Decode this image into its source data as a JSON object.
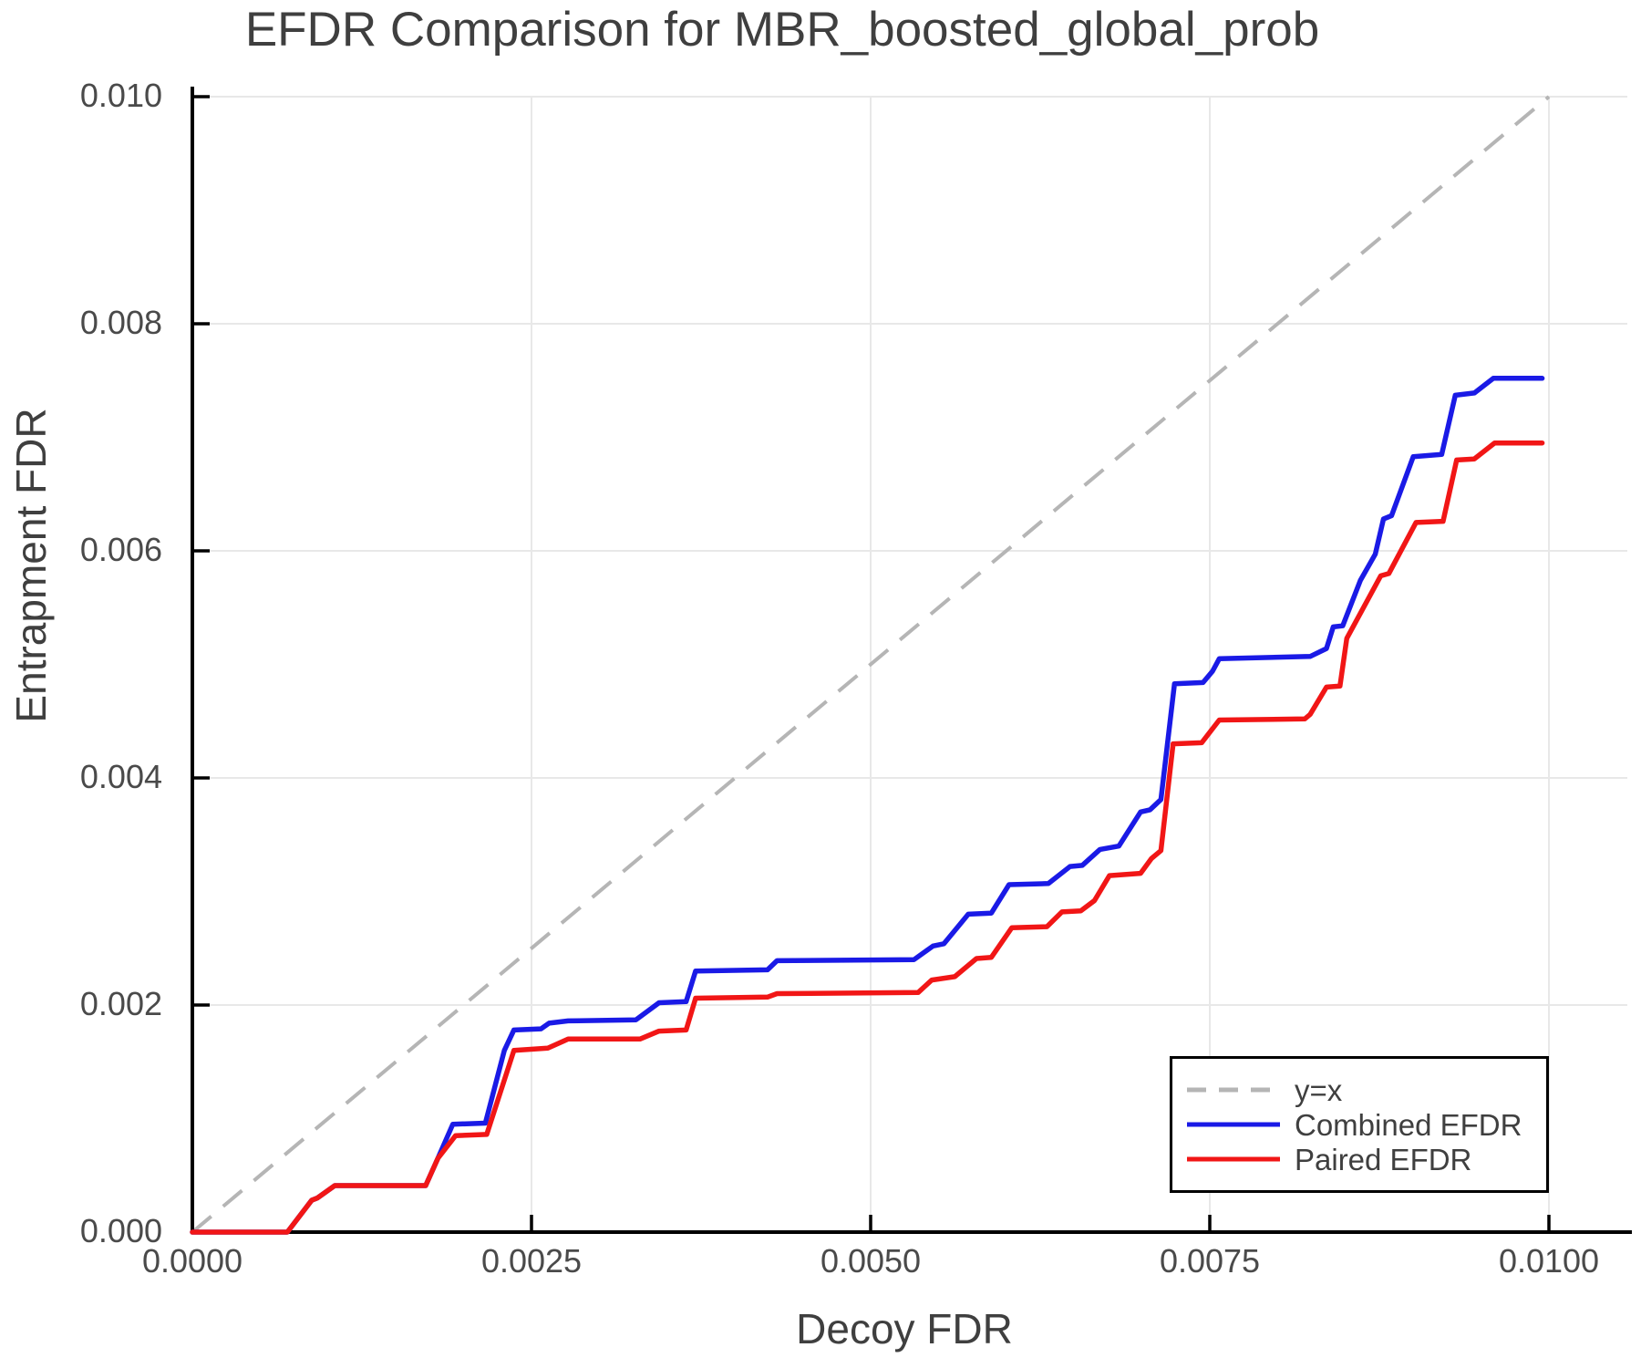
{
  "title": "EFDR Comparison for MBR_boosted_global_prob",
  "axes": {
    "x": {
      "label": "Decoy FDR",
      "ticks": [
        "0.0000",
        "0.0025",
        "0.0050",
        "0.0075",
        "0.0100"
      ],
      "tick_values": [
        0,
        0.0025,
        0.005,
        0.0075,
        0.01
      ]
    },
    "y": {
      "label": "Entrapment FDR",
      "ticks": [
        "0.000",
        "0.002",
        "0.004",
        "0.006",
        "0.008",
        "0.010"
      ],
      "tick_values": [
        0,
        0.002,
        0.004,
        0.006,
        0.008,
        0.01
      ]
    }
  },
  "legend": {
    "items": [
      {
        "label": "y=x",
        "color": "#b5b5b5",
        "style": "dashed"
      },
      {
        "label": "Combined EFDR",
        "color": "#1a1ae6",
        "style": "solid"
      },
      {
        "label": "Paired EFDR",
        "color": "#f11616",
        "style": "solid"
      }
    ]
  },
  "colors": {
    "grid": "#e8e8e8",
    "spine": "#000000",
    "title_text": "#3f3f3f",
    "tick_text": "#4a4a4a",
    "background": "#ffffff"
  },
  "chart_data": {
    "type": "line",
    "title": "EFDR Comparison for MBR_boosted_global_prob",
    "xlabel": "Decoy FDR",
    "ylabel": "Entrapment FDR",
    "xlim": [
      0,
      0.0105
    ],
    "ylim": [
      0,
      0.0101
    ],
    "grid": true,
    "legend_position": "lower right",
    "series": [
      {
        "name": "y=x",
        "color": "#b5b5b5",
        "dash": true,
        "points": [
          [
            0,
            0
          ],
          [
            0.01,
            0.01
          ]
        ]
      },
      {
        "name": "Combined EFDR",
        "color": "#1a1ae6",
        "dash": false,
        "points": [
          [
            0.0,
            0.0
          ],
          [
            0.0007,
            0.0
          ],
          [
            0.00088,
            0.00028
          ],
          [
            0.00092,
            0.0003
          ],
          [
            0.00105,
            0.00041
          ],
          [
            0.00172,
            0.00041
          ],
          [
            0.00181,
            0.00065
          ],
          [
            0.00192,
            0.00095
          ],
          [
            0.00216,
            0.00096
          ],
          [
            0.0023,
            0.0016
          ],
          [
            0.00237,
            0.00178
          ],
          [
            0.00257,
            0.00179
          ],
          [
            0.00263,
            0.00184
          ],
          [
            0.00277,
            0.00186
          ],
          [
            0.00327,
            0.00187
          ],
          [
            0.00344,
            0.00202
          ],
          [
            0.00364,
            0.00203
          ],
          [
            0.00371,
            0.0023
          ],
          [
            0.00424,
            0.00231
          ],
          [
            0.00431,
            0.00239
          ],
          [
            0.00532,
            0.0024
          ],
          [
            0.00546,
            0.00252
          ],
          [
            0.00554,
            0.00254
          ],
          [
            0.00572,
            0.0028
          ],
          [
            0.00589,
            0.00281
          ],
          [
            0.00602,
            0.00306
          ],
          [
            0.00631,
            0.00307
          ],
          [
            0.00647,
            0.00322
          ],
          [
            0.00656,
            0.00323
          ],
          [
            0.00669,
            0.00337
          ],
          [
            0.00683,
            0.0034
          ],
          [
            0.00699,
            0.0037
          ],
          [
            0.00706,
            0.00372
          ],
          [
            0.00714,
            0.00381
          ],
          [
            0.00724,
            0.00483
          ],
          [
            0.00745,
            0.00484
          ],
          [
            0.00752,
            0.00494
          ],
          [
            0.00757,
            0.00505
          ],
          [
            0.00824,
            0.00507
          ],
          [
            0.00836,
            0.00514
          ],
          [
            0.00841,
            0.00533
          ],
          [
            0.00848,
            0.00534
          ],
          [
            0.00861,
            0.00574
          ],
          [
            0.00872,
            0.00597
          ],
          [
            0.00878,
            0.00628
          ],
          [
            0.00884,
            0.00631
          ],
          [
            0.009,
            0.00683
          ],
          [
            0.00921,
            0.00685
          ],
          [
            0.00931,
            0.00737
          ],
          [
            0.00945,
            0.00739
          ],
          [
            0.00959,
            0.00752
          ],
          [
            0.00995,
            0.00752
          ]
        ]
      },
      {
        "name": "Paired EFDR",
        "color": "#f11616",
        "dash": false,
        "points": [
          [
            0.0,
            0.0
          ],
          [
            0.0007,
            0.0
          ],
          [
            0.00088,
            0.00028
          ],
          [
            0.00092,
            0.0003
          ],
          [
            0.00105,
            0.00041
          ],
          [
            0.00172,
            0.00041
          ],
          [
            0.00181,
            0.00065
          ],
          [
            0.00194,
            0.00085
          ],
          [
            0.00217,
            0.00086
          ],
          [
            0.00237,
            0.0016
          ],
          [
            0.00262,
            0.00162
          ],
          [
            0.00277,
            0.0017
          ],
          [
            0.0033,
            0.0017
          ],
          [
            0.00344,
            0.00177
          ],
          [
            0.00364,
            0.00178
          ],
          [
            0.00371,
            0.00206
          ],
          [
            0.00424,
            0.00207
          ],
          [
            0.00431,
            0.0021
          ],
          [
            0.00535,
            0.00211
          ],
          [
            0.00545,
            0.00222
          ],
          [
            0.00562,
            0.00225
          ],
          [
            0.00578,
            0.00241
          ],
          [
            0.00589,
            0.00242
          ],
          [
            0.00604,
            0.00268
          ],
          [
            0.0063,
            0.00269
          ],
          [
            0.00641,
            0.00282
          ],
          [
            0.00655,
            0.00283
          ],
          [
            0.00665,
            0.00292
          ],
          [
            0.00676,
            0.00314
          ],
          [
            0.00699,
            0.00316
          ],
          [
            0.00707,
            0.00329
          ],
          [
            0.00714,
            0.00336
          ],
          [
            0.00723,
            0.0043
          ],
          [
            0.00744,
            0.00431
          ],
          [
            0.00757,
            0.00451
          ],
          [
            0.0082,
            0.00452
          ],
          [
            0.00824,
            0.00456
          ],
          [
            0.00836,
            0.0048
          ],
          [
            0.00846,
            0.00481
          ],
          [
            0.00851,
            0.00523
          ],
          [
            0.00876,
            0.00578
          ],
          [
            0.00882,
            0.0058
          ],
          [
            0.00902,
            0.00625
          ],
          [
            0.00922,
            0.00626
          ],
          [
            0.00932,
            0.0068
          ],
          [
            0.00945,
            0.00681
          ],
          [
            0.0096,
            0.00695
          ],
          [
            0.00995,
            0.00695
          ]
        ]
      }
    ]
  }
}
